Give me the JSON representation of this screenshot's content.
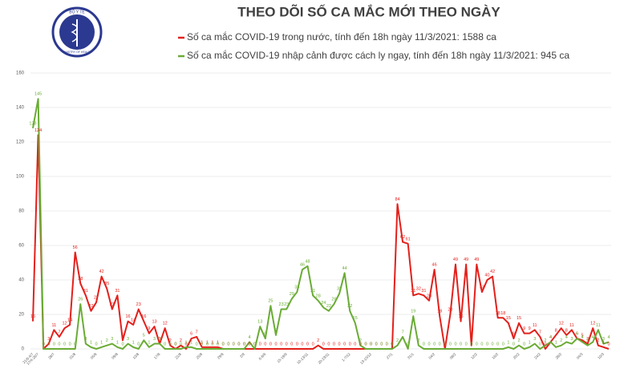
{
  "chart_data": {
    "type": "line",
    "title": "THEO DÕI SỐ CA MẮC MỚI THEO NGÀY",
    "logo_text": [
      "BỘ Y TẾ",
      "MINISTRY OF HEALTH"
    ],
    "categories": [
      "21/6-4/7",
      "17/4-26/7",
      null,
      null,
      "28/7",
      null,
      null,
      null,
      "01/8",
      null,
      null,
      null,
      "05/8",
      null,
      null,
      null,
      "09/8",
      null,
      null,
      null,
      "13/8",
      null,
      null,
      null,
      "17/8",
      null,
      null,
      null,
      "21/8",
      null,
      null,
      null,
      "25/8",
      null,
      null,
      null,
      "29/8",
      null,
      null,
      null,
      "2/9",
      null,
      null,
      null,
      "6-8/9",
      null,
      null,
      null,
      "15-19/9",
      null,
      null,
      null,
      "10-13/11",
      null,
      null,
      null,
      "20-23/11",
      null,
      null,
      null,
      "1-7/12",
      null,
      null,
      null,
      "13-15/12",
      null,
      null,
      null,
      "27/1",
      null,
      null,
      null,
      "31/1",
      null,
      null,
      null,
      "04/2",
      null,
      null,
      null,
      "08/2",
      null,
      null,
      null,
      "12/2",
      null,
      null,
      null,
      "16/2",
      null,
      null,
      null,
      "20/2",
      null,
      null,
      null,
      "24/2",
      null,
      null,
      null,
      "28/2",
      null,
      null,
      null,
      "04/3",
      null,
      null,
      null,
      "10/3",
      null
    ],
    "series": [
      {
        "name": "Số ca mắc COVID-19 trong nước, tính đến 18h ngày 11/3/2021: 1588 ca",
        "color": "#e3201b",
        "values": [
          16,
          124,
          0,
          3,
          11,
          7,
          12,
          14,
          56,
          38,
          31,
          22,
          27,
          42,
          35,
          23,
          31,
          5,
          16,
          14,
          23,
          16,
          9,
          13,
          3,
          12,
          2,
          0,
          2,
          0,
          6,
          7,
          1,
          1,
          1,
          1,
          0,
          0,
          0,
          0,
          0,
          0,
          0,
          0,
          0,
          0,
          0,
          0,
          0,
          0,
          0,
          0,
          0,
          0,
          2,
          0,
          0,
          0,
          0,
          0,
          0,
          0,
          0,
          0,
          0,
          0,
          0,
          0,
          0,
          84,
          62,
          61,
          31,
          32,
          31,
          28,
          46,
          19,
          0,
          20,
          49,
          16,
          49,
          2,
          49,
          33,
          40,
          42,
          18,
          18,
          15,
          6,
          15,
          9,
          9,
          11,
          7,
          0,
          4,
          8,
          12,
          8,
          11,
          6,
          5,
          3,
          12,
          2,
          1,
          0
        ]
      },
      {
        "name": "Số ca mắc COVID-19 nhập cảnh được cách ly ngay, tính đến 18h ngày 11/3/2021: 945 ca",
        "color": "#6aab35",
        "values": [
          128,
          145,
          0,
          0,
          0,
          0,
          0,
          0,
          0,
          26,
          3,
          1,
          0,
          1,
          2,
          3,
          1,
          0,
          3,
          1,
          0,
          5,
          1,
          3,
          3,
          0,
          0,
          0,
          0,
          1,
          1,
          0,
          0,
          0,
          0,
          0,
          0,
          0,
          0,
          0,
          0,
          4,
          0,
          13,
          6,
          25,
          8,
          23,
          23,
          29,
          33,
          46,
          48,
          31,
          28,
          24,
          22,
          26,
          32,
          44,
          22,
          15,
          2,
          0,
          0,
          0,
          0,
          0,
          0,
          2,
          7,
          0,
          19,
          2,
          0,
          0,
          0,
          0,
          0,
          0,
          0,
          0,
          0,
          0,
          0,
          0,
          0,
          0,
          0,
          0,
          1,
          0,
          2,
          0,
          1,
          3,
          0,
          2,
          4,
          1,
          2,
          4,
          3,
          6,
          4,
          2,
          4,
          11,
          3,
          4
        ]
      }
    ],
    "ylim": [
      0,
      160
    ],
    "yticks": [
      0,
      20,
      40,
      60,
      80,
      100,
      120,
      140,
      160
    ],
    "grid": true
  }
}
